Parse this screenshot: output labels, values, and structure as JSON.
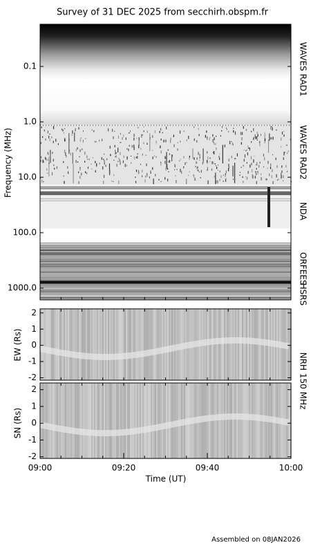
{
  "chart_data": [
    {
      "type": "spectrogram",
      "title": "Survey of 31 DEC 2025 from secchirh.obspm.fr",
      "y_label": "Frequency (MHz)",
      "log_y": true,
      "y_reversed": true,
      "ylim": [
        0.0173,
        1630
      ],
      "yticks": [
        0.1,
        {
          "value": 1,
          "label": "1.0"
        },
        {
          "value": 10,
          "label": "10.0"
        },
        {
          "value": 100,
          "label": "100.0"
        },
        {
          "value": 1000,
          "label": "1000.0"
        }
      ],
      "xlim": [
        "09:00",
        "10:00"
      ],
      "annotations": [
        "WAVES RAD1",
        "WAVES RAD2",
        "NDA",
        "ORFEES",
        "HSRS"
      ]
    },
    {
      "type": "heatmap",
      "y_label": "EW (Rs)",
      "ylim": [
        -2.15,
        2.25
      ],
      "yticks": [
        -2,
        -1,
        0,
        1,
        2
      ],
      "xlim": [
        "09:00",
        "10:00"
      ],
      "annotations": [
        "NRH 150 MHz"
      ]
    },
    {
      "type": "heatmap",
      "y_label": "SN (Rs)",
      "ylim": [
        -2.1,
        2.4
      ],
      "yticks": [
        -2,
        -1,
        0,
        1,
        2
      ],
      "xlim": [
        "09:00",
        "10:00"
      ],
      "xticks": [
        "09:00",
        "09:20",
        "09:40",
        "10:00"
      ],
      "x_label": "Time (UT)"
    }
  ],
  "footer": "Assembled on 08JAN2026"
}
